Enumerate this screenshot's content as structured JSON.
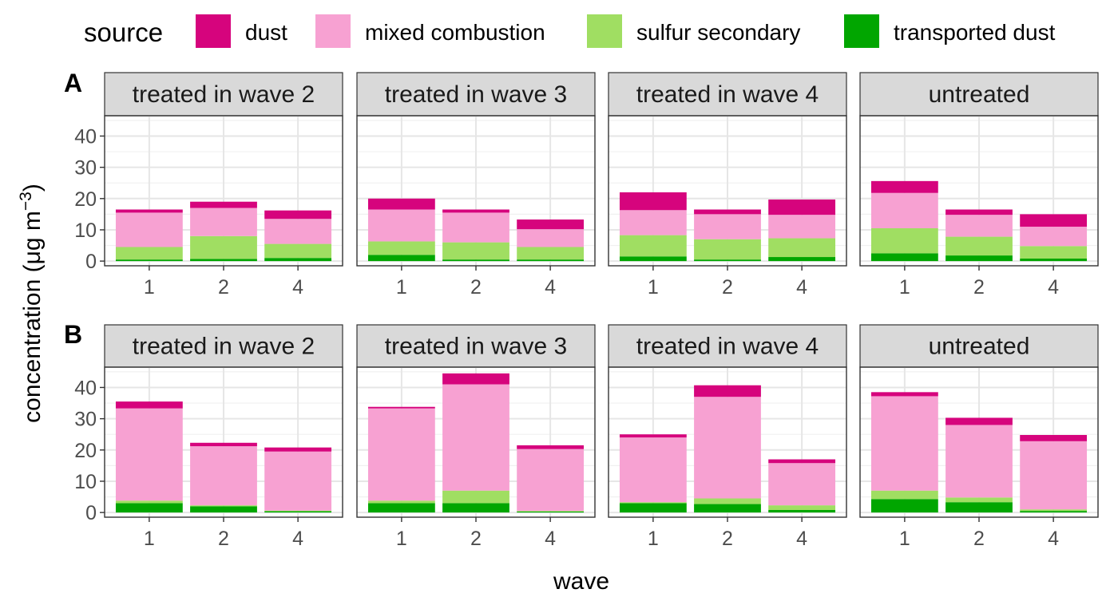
{
  "legend": {
    "title": "source",
    "items": [
      {
        "label": "dust",
        "color": "#d6047d"
      },
      {
        "label": "mixed combustion",
        "color": "#f7a1d2"
      },
      {
        "label": "sulfur secondary",
        "color": "#a0de62"
      },
      {
        "label": "transported dust",
        "color": "#01a600"
      }
    ]
  },
  "axes": {
    "xlabel": "wave",
    "ylabel_main": "concentration (",
    "ylabel_mu": "μ",
    "ylabel_g": "g m",
    "ylabel_sup": "−3",
    "ylabel_close": ")"
  },
  "chart_data": {
    "type": "bar",
    "stacked": true,
    "x": [
      "1",
      "2",
      "4"
    ],
    "stack_order": [
      "transported dust",
      "sulfur secondary",
      "mixed combustion",
      "dust"
    ],
    "ylim": [
      -1.5,
      46.5
    ],
    "y_ticks": [
      0,
      10,
      20,
      30,
      40
    ],
    "grid": true,
    "legend_position": "top",
    "rows": [
      {
        "tag": "A",
        "panels": [
          {
            "strip": "treated in wave 2",
            "bars": [
              {
                "transported dust": 0.5,
                "sulfur secondary": 4.0,
                "mixed combustion": 11.0,
                "dust": 1.0
              },
              {
                "transported dust": 0.7,
                "sulfur secondary": 7.3,
                "mixed combustion": 9.0,
                "dust": 2.0
              },
              {
                "transported dust": 1.0,
                "sulfur secondary": 4.5,
                "mixed combustion": 8.0,
                "dust": 2.7
              }
            ]
          },
          {
            "strip": "treated in wave 3",
            "bars": [
              {
                "transported dust": 2.0,
                "sulfur secondary": 4.3,
                "mixed combustion": 10.2,
                "dust": 3.5
              },
              {
                "transported dust": 0.5,
                "sulfur secondary": 5.5,
                "mixed combustion": 9.5,
                "dust": 1.0
              },
              {
                "transported dust": 0.5,
                "sulfur secondary": 4.0,
                "mixed combustion": 5.7,
                "dust": 3.1
              }
            ]
          },
          {
            "strip": "treated in wave 4",
            "bars": [
              {
                "transported dust": 1.5,
                "sulfur secondary": 6.8,
                "mixed combustion": 8.0,
                "dust": 5.7
              },
              {
                "transported dust": 0.5,
                "sulfur secondary": 6.5,
                "mixed combustion": 8.0,
                "dust": 1.5
              },
              {
                "transported dust": 1.3,
                "sulfur secondary": 6.0,
                "mixed combustion": 7.5,
                "dust": 4.9
              }
            ]
          },
          {
            "strip": "untreated",
            "bars": [
              {
                "transported dust": 2.5,
                "sulfur secondary": 8.0,
                "mixed combustion": 11.3,
                "dust": 3.8
              },
              {
                "transported dust": 1.8,
                "sulfur secondary": 6.0,
                "mixed combustion": 7.0,
                "dust": 1.7
              },
              {
                "transported dust": 0.8,
                "sulfur secondary": 4.0,
                "mixed combustion": 6.2,
                "dust": 4.0
              }
            ]
          }
        ]
      },
      {
        "tag": "B",
        "panels": [
          {
            "strip": "treated in wave 2",
            "bars": [
              {
                "transported dust": 3.0,
                "sulfur secondary": 0.8,
                "mixed combustion": 29.5,
                "dust": 2.2
              },
              {
                "transported dust": 2.0,
                "sulfur secondary": 0.3,
                "mixed combustion": 18.9,
                "dust": 1.1
              },
              {
                "transported dust": 0.4,
                "sulfur secondary": 0.2,
                "mixed combustion": 18.9,
                "dust": 1.3
              }
            ]
          },
          {
            "strip": "treated in wave 3",
            "bars": [
              {
                "transported dust": 3.0,
                "sulfur secondary": 0.8,
                "mixed combustion": 29.5,
                "dust": 0.5
              },
              {
                "transported dust": 3.0,
                "sulfur secondary": 4.0,
                "mixed combustion": 34.0,
                "dust": 3.5
              },
              {
                "transported dust": 0.3,
                "sulfur secondary": 0.2,
                "mixed combustion": 19.8,
                "dust": 1.2
              }
            ]
          },
          {
            "strip": "treated in wave 4",
            "bars": [
              {
                "transported dust": 3.0,
                "sulfur secondary": 0.3,
                "mixed combustion": 20.7,
                "dust": 1.0
              },
              {
                "transported dust": 2.7,
                "sulfur secondary": 1.8,
                "mixed combustion": 32.5,
                "dust": 3.7
              },
              {
                "transported dust": 0.8,
                "sulfur secondary": 1.5,
                "mixed combustion": 13.5,
                "dust": 1.2
              }
            ]
          },
          {
            "strip": "untreated",
            "bars": [
              {
                "transported dust": 4.3,
                "sulfur secondary": 2.7,
                "mixed combustion": 30.2,
                "dust": 1.3
              },
              {
                "transported dust": 3.3,
                "sulfur secondary": 1.5,
                "mixed combustion": 23.2,
                "dust": 2.3
              },
              {
                "transported dust": 0.5,
                "sulfur secondary": 0.5,
                "mixed combustion": 21.8,
                "dust": 2.0
              }
            ]
          }
        ]
      }
    ]
  }
}
